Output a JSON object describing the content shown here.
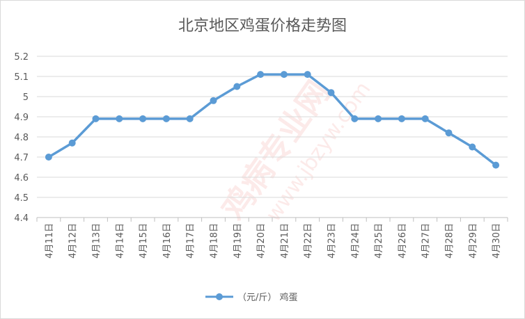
{
  "chart_data": {
    "type": "line",
    "title": "北京地区鸡蛋价格走势图",
    "categories": [
      "4月11日",
      "4月12日",
      "4月13日",
      "4月14日",
      "4月15日",
      "4月16日",
      "4月17日",
      "4月18日",
      "4月19日",
      "4月20日",
      "4月21日",
      "4月22日",
      "4月23日",
      "4月24日",
      "4月25日",
      "4月26日",
      "4月27日",
      "4月28日",
      "4月29日",
      "4月30日"
    ],
    "series": [
      {
        "name": "（元/斤） 鸡蛋",
        "values": [
          4.7,
          4.77,
          4.89,
          4.89,
          4.89,
          4.89,
          4.89,
          4.98,
          5.05,
          5.11,
          5.11,
          5.11,
          5.02,
          4.89,
          4.89,
          4.89,
          4.89,
          4.82,
          4.75,
          4.66
        ],
        "color": "#5b9bd5"
      }
    ],
    "y_ticks": [
      "4.4",
      "4.5",
      "4.6",
      "4.7",
      "4.8",
      "4.9",
      "5",
      "5.1",
      "5.2"
    ],
    "ylim": [
      4.4,
      5.2
    ],
    "grid": true,
    "legend_position": "bottom",
    "watermark": "鸡病专业网 www.jbzyw.com"
  }
}
